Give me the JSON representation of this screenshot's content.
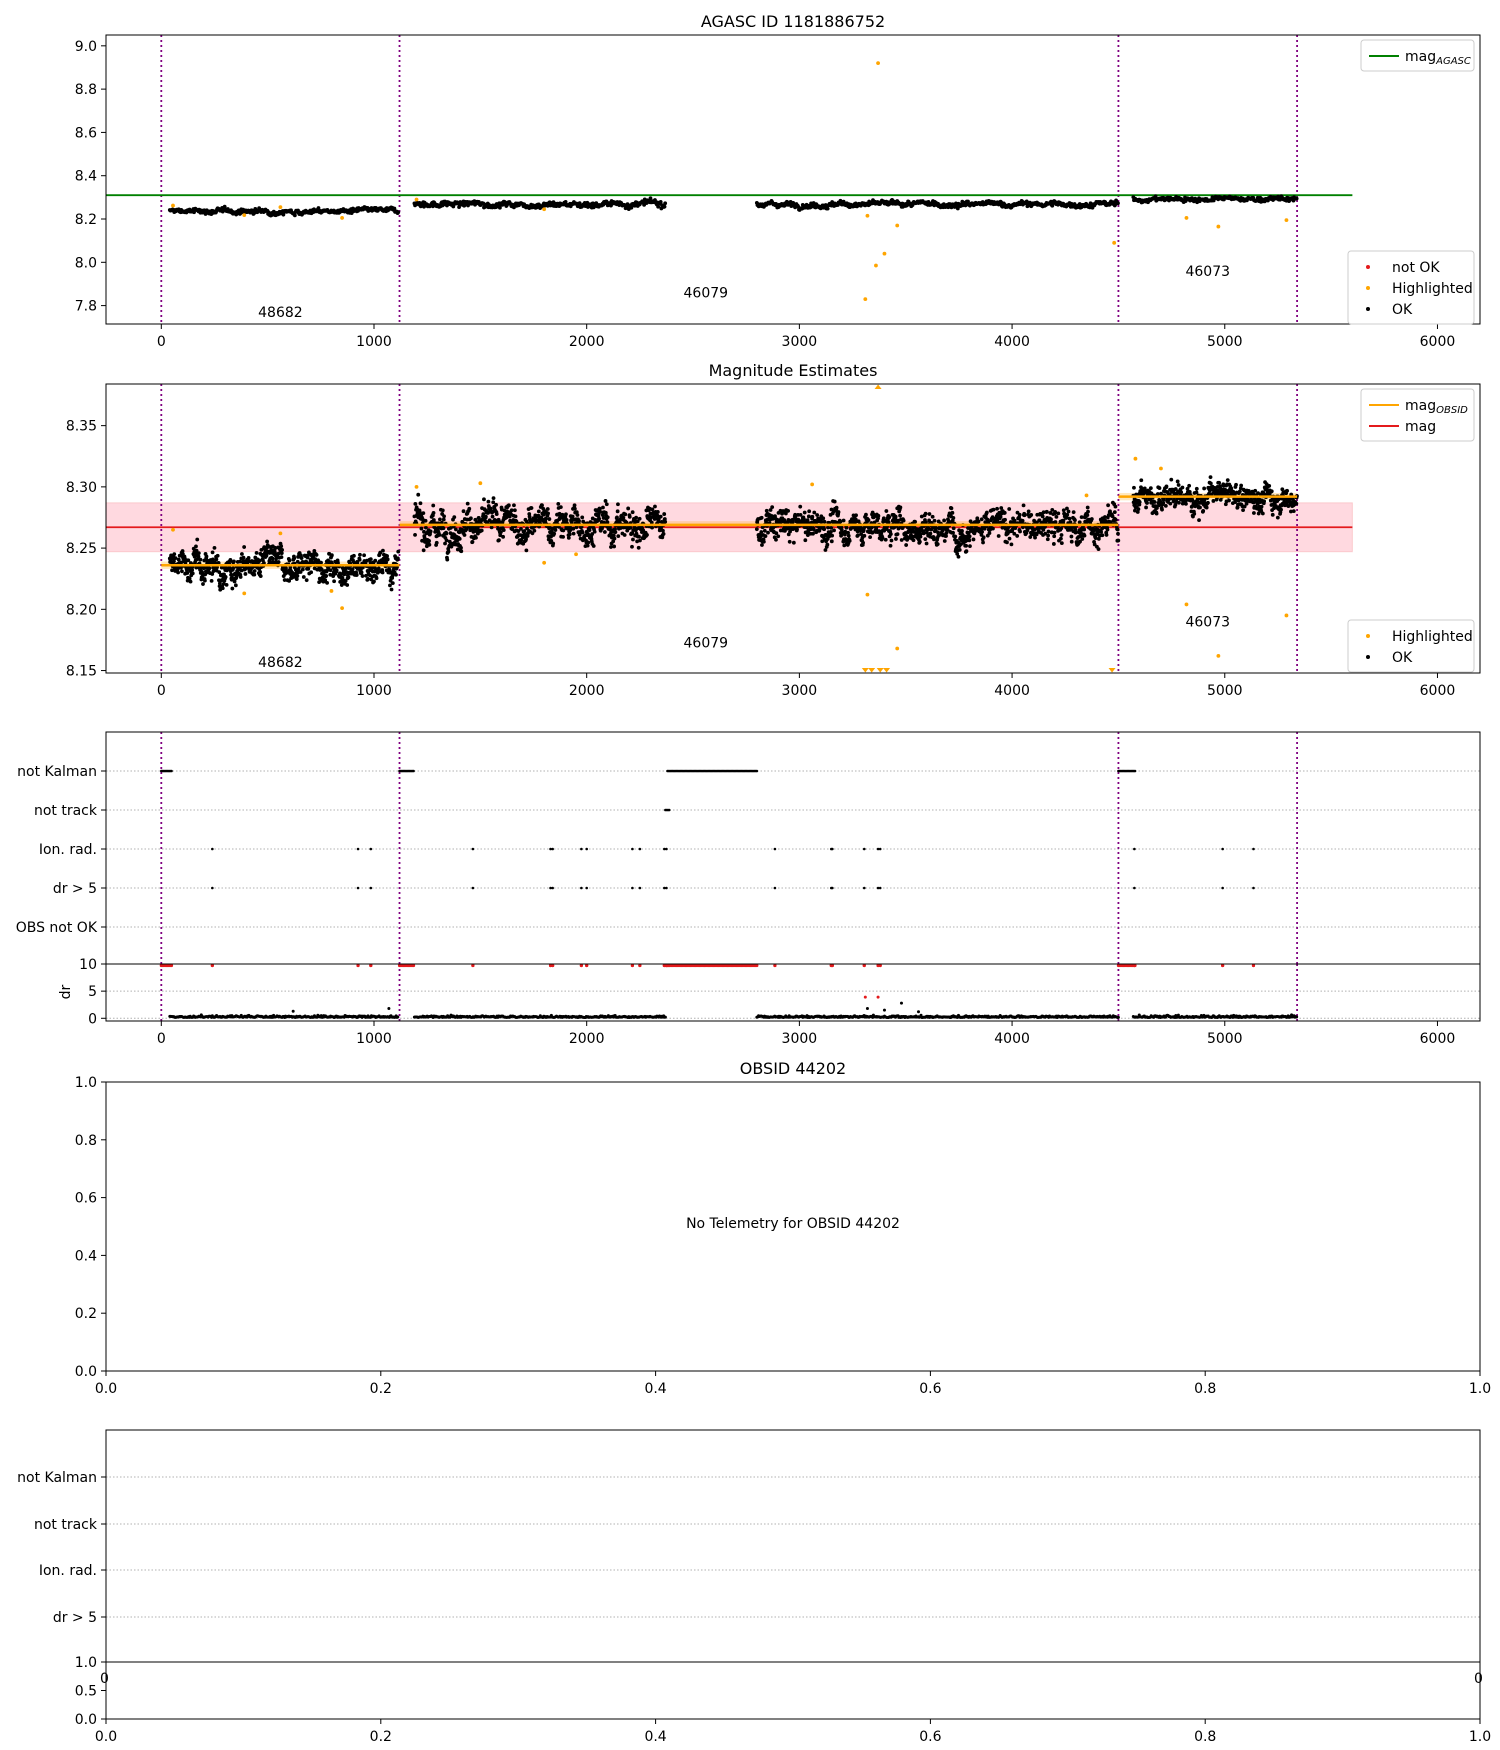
{
  "figure": {
    "panel1_title": "AGASC ID 1181886752",
    "panel2_title": "Magnitude Estimates",
    "panel4_title": "OBSID 44202",
    "no_telemetry_text": "No Telemetry for OBSID 44202"
  },
  "colors": {
    "agasc_line": "#008000",
    "mag_line": "#e41a1c",
    "obsid_mag": "#ffa500",
    "highlighted": "#ffa500",
    "not_ok": "#e41a1c",
    "ok": "#000000",
    "obs_boundary": "#800080",
    "band": "#ffc0cb"
  },
  "chart_data": [
    {
      "type": "scatter",
      "title": "AGASC ID 1181886752",
      "xlim": [
        -260,
        6200
      ],
      "ylim": [
        7.715,
        9.05
      ],
      "xticks": [
        0,
        1000,
        2000,
        3000,
        4000,
        5000,
        6000
      ],
      "yticks": [
        7.8,
        8.0,
        8.2,
        8.4,
        8.6,
        8.8,
        9.0
      ],
      "ytick_labels": [
        "7.8",
        "8.0",
        "8.2",
        "8.4",
        "8.6",
        "8.8",
        "9.0"
      ],
      "mag_agasc": 8.31,
      "mag_agasc_xrange": [
        -260,
        5600
      ],
      "legend_top": [
        {
          "label": "mag",
          "subscript": "AGASC",
          "color": "#008000",
          "kind": "line"
        }
      ],
      "legend_bottom": [
        {
          "label": "not OK",
          "color": "#e41a1c",
          "kind": "dot"
        },
        {
          "label": "Highlighted",
          "color": "#ffa500",
          "kind": "dot"
        },
        {
          "label": "OK",
          "color": "#000000",
          "kind": "dot"
        }
      ],
      "obs_boundaries": [
        0,
        1120,
        4500,
        5340
      ],
      "obs_labels": [
        {
          "text": "48682",
          "x": 560,
          "y": 7.77
        },
        {
          "text": "46079",
          "x": 2560,
          "y": 7.86
        },
        {
          "text": "46073",
          "x": 4920,
          "y": 7.96
        }
      ],
      "ok_segments": [
        {
          "x0": 40,
          "x1": 1115,
          "mean": 8.236,
          "spread": 0.012
        },
        {
          "x0": 1190,
          "x1": 2370,
          "mean": 8.269,
          "spread": 0.014
        },
        {
          "x0": 2800,
          "x1": 4500,
          "mean": 8.268,
          "spread": 0.013
        },
        {
          "x0": 4570,
          "x1": 5340,
          "mean": 8.292,
          "spread": 0.011
        }
      ],
      "highlighted_points": [
        [
          55,
          8.262
        ],
        [
          390,
          8.218
        ],
        [
          560,
          8.255
        ],
        [
          850,
          8.205
        ],
        [
          1200,
          8.29
        ],
        [
          1800,
          8.245
        ],
        [
          3310,
          7.83
        ],
        [
          3320,
          8.215
        ],
        [
          3360,
          7.985
        ],
        [
          3370,
          8.92
        ],
        [
          3400,
          8.04
        ],
        [
          3460,
          8.17
        ],
        [
          4480,
          8.09
        ],
        [
          4820,
          8.205
        ],
        [
          4970,
          8.165
        ],
        [
          5290,
          8.195
        ]
      ]
    },
    {
      "type": "scatter",
      "title": "Magnitude Estimates",
      "xlim": [
        -260,
        6200
      ],
      "ylim": [
        8.148,
        8.384
      ],
      "xticks": [
        0,
        1000,
        2000,
        3000,
        4000,
        5000,
        6000
      ],
      "yticks": [
        8.15,
        8.2,
        8.25,
        8.3,
        8.35
      ],
      "ytick_labels": [
        "8.15",
        "8.20",
        "8.25",
        "8.30",
        "8.35"
      ],
      "mag": 8.267,
      "mag_band": [
        8.247,
        8.287
      ],
      "mag_xrange": [
        -260,
        5600
      ],
      "mag_obsid": [
        {
          "x0": 0,
          "x1": 1120,
          "value": 8.236
        },
        {
          "x0": 1120,
          "x1": 4500,
          "value": 8.269
        },
        {
          "x0": 4500,
          "x1": 5340,
          "value": 8.292
        }
      ],
      "mag_obsid_band_half": 0.003,
      "legend_top": [
        {
          "label": "mag",
          "subscript": "OBSID",
          "color": "#ffa500",
          "kind": "line"
        },
        {
          "label": "mag",
          "subscript": "",
          "color": "#e41a1c",
          "kind": "line"
        }
      ],
      "legend_bottom": [
        {
          "label": "Highlighted",
          "color": "#ffa500",
          "kind": "dot"
        },
        {
          "label": "OK",
          "color": "#000000",
          "kind": "dot"
        }
      ],
      "obs_boundaries": [
        0,
        1120,
        4500,
        5340
      ],
      "obs_labels": [
        {
          "text": "48682",
          "x": 560,
          "y": 8.157
        },
        {
          "text": "46079",
          "x": 2560,
          "y": 8.173
        },
        {
          "text": "46073",
          "x": 4920,
          "y": 8.19
        }
      ],
      "ok_segments": [
        {
          "x0": 40,
          "x1": 1115,
          "mean": 8.236,
          "spread": 0.012
        },
        {
          "x0": 1190,
          "x1": 2370,
          "mean": 8.269,
          "spread": 0.014
        },
        {
          "x0": 2800,
          "x1": 4500,
          "mean": 8.268,
          "spread": 0.013
        },
        {
          "x0": 4570,
          "x1": 5340,
          "mean": 8.292,
          "spread": 0.011
        }
      ],
      "highlighted_points": [
        [
          55,
          8.265
        ],
        [
          390,
          8.213
        ],
        [
          560,
          8.262
        ],
        [
          800,
          8.215
        ],
        [
          850,
          8.201
        ],
        [
          1200,
          8.3
        ],
        [
          1500,
          8.303
        ],
        [
          1800,
          8.238
        ],
        [
          1950,
          8.245
        ],
        [
          3060,
          8.302
        ],
        [
          3320,
          8.212
        ],
        [
          3460,
          8.168
        ],
        [
          4350,
          8.293
        ],
        [
          4580,
          8.323
        ],
        [
          4700,
          8.315
        ],
        [
          4820,
          8.204
        ],
        [
          4970,
          8.162
        ],
        [
          5290,
          8.195
        ]
      ],
      "clipped_markers": [
        3310,
        3340,
        3380,
        3410,
        4470
      ],
      "clipped_top_marker": 3370
    },
    {
      "type": "scatter",
      "title": "",
      "xlim": [
        -260,
        6200
      ],
      "categories": [
        "not Kalman",
        "not track",
        "Ion. rad.",
        "dr > 5",
        "OBS not OK"
      ],
      "obs_boundaries": [
        0,
        1120,
        4500,
        5340
      ],
      "flag_points": {
        "not Kalman": [
          [
            0,
            50
          ],
          [
            1120,
            1190
          ],
          [
            2380,
            2800
          ],
          [
            4500,
            4580
          ]
        ],
        "not track": [
          [
            2370,
            2390
          ]
        ],
        "Ion. rad.": [
          240,
          925,
          985,
          1465,
          1830,
          1840,
          1975,
          2000,
          2215,
          2250,
          2365,
          2375,
          2885,
          3150,
          3155,
          3305,
          3370,
          3380,
          4575,
          4990,
          5135
        ],
        "dr > 5": [
          240,
          925,
          985,
          1465,
          1830,
          1840,
          1975,
          2000,
          2215,
          2250,
          2365,
          2375,
          2885,
          3150,
          3155,
          3305,
          3370,
          3380,
          4575,
          4990,
          5135
        ],
        "OBS not OK": []
      },
      "dr_ylim": [
        -0.5,
        10
      ],
      "dr_yticks": [
        0,
        5,
        10
      ],
      "dr_ylabel": "dr",
      "xticks": [
        0,
        1000,
        2000,
        3000,
        4000,
        5000,
        6000
      ],
      "dr_segments": [
        {
          "x0": 40,
          "x1": 1115
        },
        {
          "x0": 1190,
          "x1": 2370
        },
        {
          "x0": 2800,
          "x1": 4500
        },
        {
          "x0": 4570,
          "x1": 5340
        }
      ],
      "dr_outliers": [
        [
          620,
          1.3
        ],
        [
          1070,
          1.8
        ],
        [
          3310,
          3.9
        ],
        [
          3370,
          3.9
        ],
        [
          3320,
          1.8
        ],
        [
          3400,
          1.5
        ],
        [
          3480,
          2.8
        ],
        [
          3560,
          1.2
        ]
      ]
    },
    {
      "type": "scatter",
      "title": "OBSID 44202",
      "xlim": [
        0,
        1
      ],
      "ylim": [
        0,
        1
      ],
      "xticks": [
        0,
        0.2,
        0.4,
        0.6,
        0.8,
        1.0
      ],
      "xtick_labels": [
        "0.0",
        "0.2",
        "0.4",
        "0.6",
        "0.8",
        "1.0"
      ],
      "yticks": [
        0,
        0.2,
        0.4,
        0.6,
        0.8,
        1.0
      ],
      "ytick_labels": [
        "0.0",
        "0.2",
        "0.4",
        "0.6",
        "0.8",
        "1.0"
      ]
    },
    {
      "type": "scatter",
      "title": "",
      "categories": [
        "not Kalman",
        "not track",
        "Ion. rad.",
        "dr > 5"
      ],
      "partial_tick_labels": [
        "0",
        "0"
      ],
      "sub_ytick_labels": [
        "1.0",
        "0.5",
        "0.0"
      ],
      "xticks": [
        0,
        0.2,
        0.4,
        0.6,
        0.8,
        1.0
      ],
      "xtick_labels": [
        "0.0",
        "0.2",
        "0.4",
        "0.6",
        "0.8",
        "1.0"
      ]
    }
  ]
}
